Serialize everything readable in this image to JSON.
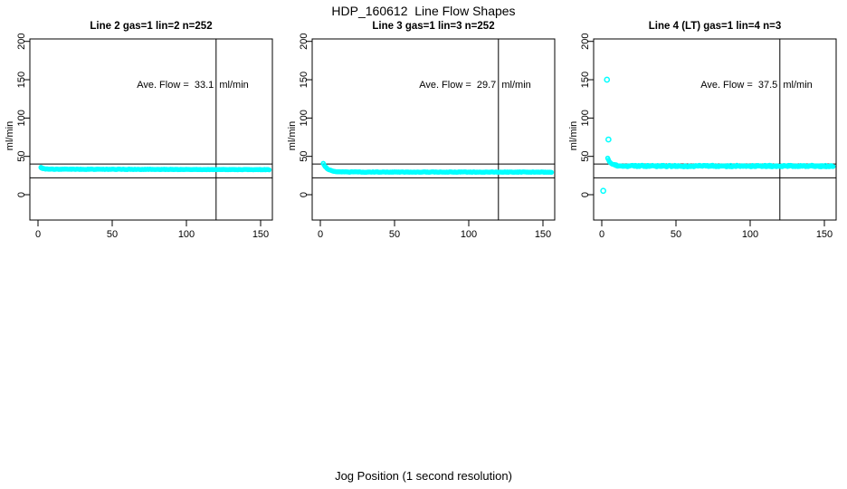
{
  "title": "HDP_160612  Line Flow Shapes",
  "xlabel": "Jog Position (1 second resolution)",
  "point_color": "#00FFFF",
  "line_color": "#000000",
  "chart_data": [
    {
      "type": "scatter",
      "title": "Line 2 gas=1 lin=2 n=252",
      "line": 2,
      "gas": 1,
      "lin": 2,
      "n": 252,
      "ave_flow": 33.1,
      "ave_flow_label": "Ave. Flow =  33.1  ml/min",
      "ylabel": "ml/min",
      "x_ticks": [
        0,
        50,
        100,
        150
      ],
      "y_ticks": [
        0,
        50,
        100,
        150,
        200
      ],
      "xlim": [
        0,
        150
      ],
      "ylim": [
        0,
        200
      ],
      "ref_lines_y": [
        40,
        22
      ],
      "vline_x": 120,
      "band": {
        "x_start": 2,
        "x_end": 156,
        "step": 0.62,
        "start": 35.2,
        "settle": 33.3,
        "decay": 1.5,
        "slope": -0.004,
        "jitter": 0.3,
        "seed": 7
      },
      "head_points": [
        [
          2,
          35.8
        ],
        [
          2.6,
          35.2
        ],
        [
          3.2,
          34.6
        ]
      ],
      "outliers": []
    },
    {
      "type": "scatter",
      "title": "Line 3 gas=1 lin=3 n=252",
      "line": 3,
      "gas": 1,
      "lin": 3,
      "n": 252,
      "ave_flow": 29.7,
      "ave_flow_label": "Ave. Flow =  29.7  ml/min",
      "ylabel": "ml/min",
      "x_ticks": [
        0,
        50,
        100,
        150
      ],
      "y_ticks": [
        0,
        50,
        100,
        150,
        200
      ],
      "xlim": [
        0,
        150
      ],
      "ylim": [
        0,
        200
      ],
      "ref_lines_y": [
        40,
        22
      ],
      "vline_x": 120,
      "band": {
        "x_start": 2,
        "x_end": 156,
        "step": 0.62,
        "start": 40.5,
        "settle": 29.6,
        "decay": 3.0,
        "slope": -0.001,
        "jitter": 0.3,
        "seed": 13
      },
      "head_points": [
        [
          2,
          41.0
        ]
      ],
      "outliers": []
    },
    {
      "type": "scatter",
      "title": "Line 4 (LT) gas=1 lin=4 n=3",
      "line": 4,
      "gas": 1,
      "lin": 4,
      "n": 3,
      "ave_flow": 37.5,
      "ave_flow_label": "Ave. Flow =  37.5  ml/min",
      "ylabel": "ml/min",
      "x_ticks": [
        0,
        50,
        100,
        150
      ],
      "y_ticks": [
        0,
        50,
        100,
        150,
        200
      ],
      "xlim": [
        0,
        150
      ],
      "ylim": [
        0,
        200
      ],
      "ref_lines_y": [
        40,
        22
      ],
      "vline_x": 120,
      "band": {
        "x_start": 4,
        "x_end": 156,
        "step": 0.58,
        "start": 47.0,
        "settle": 37.4,
        "decay": 2.2,
        "slope": 0.0,
        "jitter": 1.0,
        "seed": 29
      },
      "head_points": [
        [
          4,
          47.5
        ]
      ],
      "outliers": [
        [
          3.5,
          150
        ],
        [
          4.5,
          72
        ],
        [
          1,
          5
        ]
      ]
    }
  ]
}
